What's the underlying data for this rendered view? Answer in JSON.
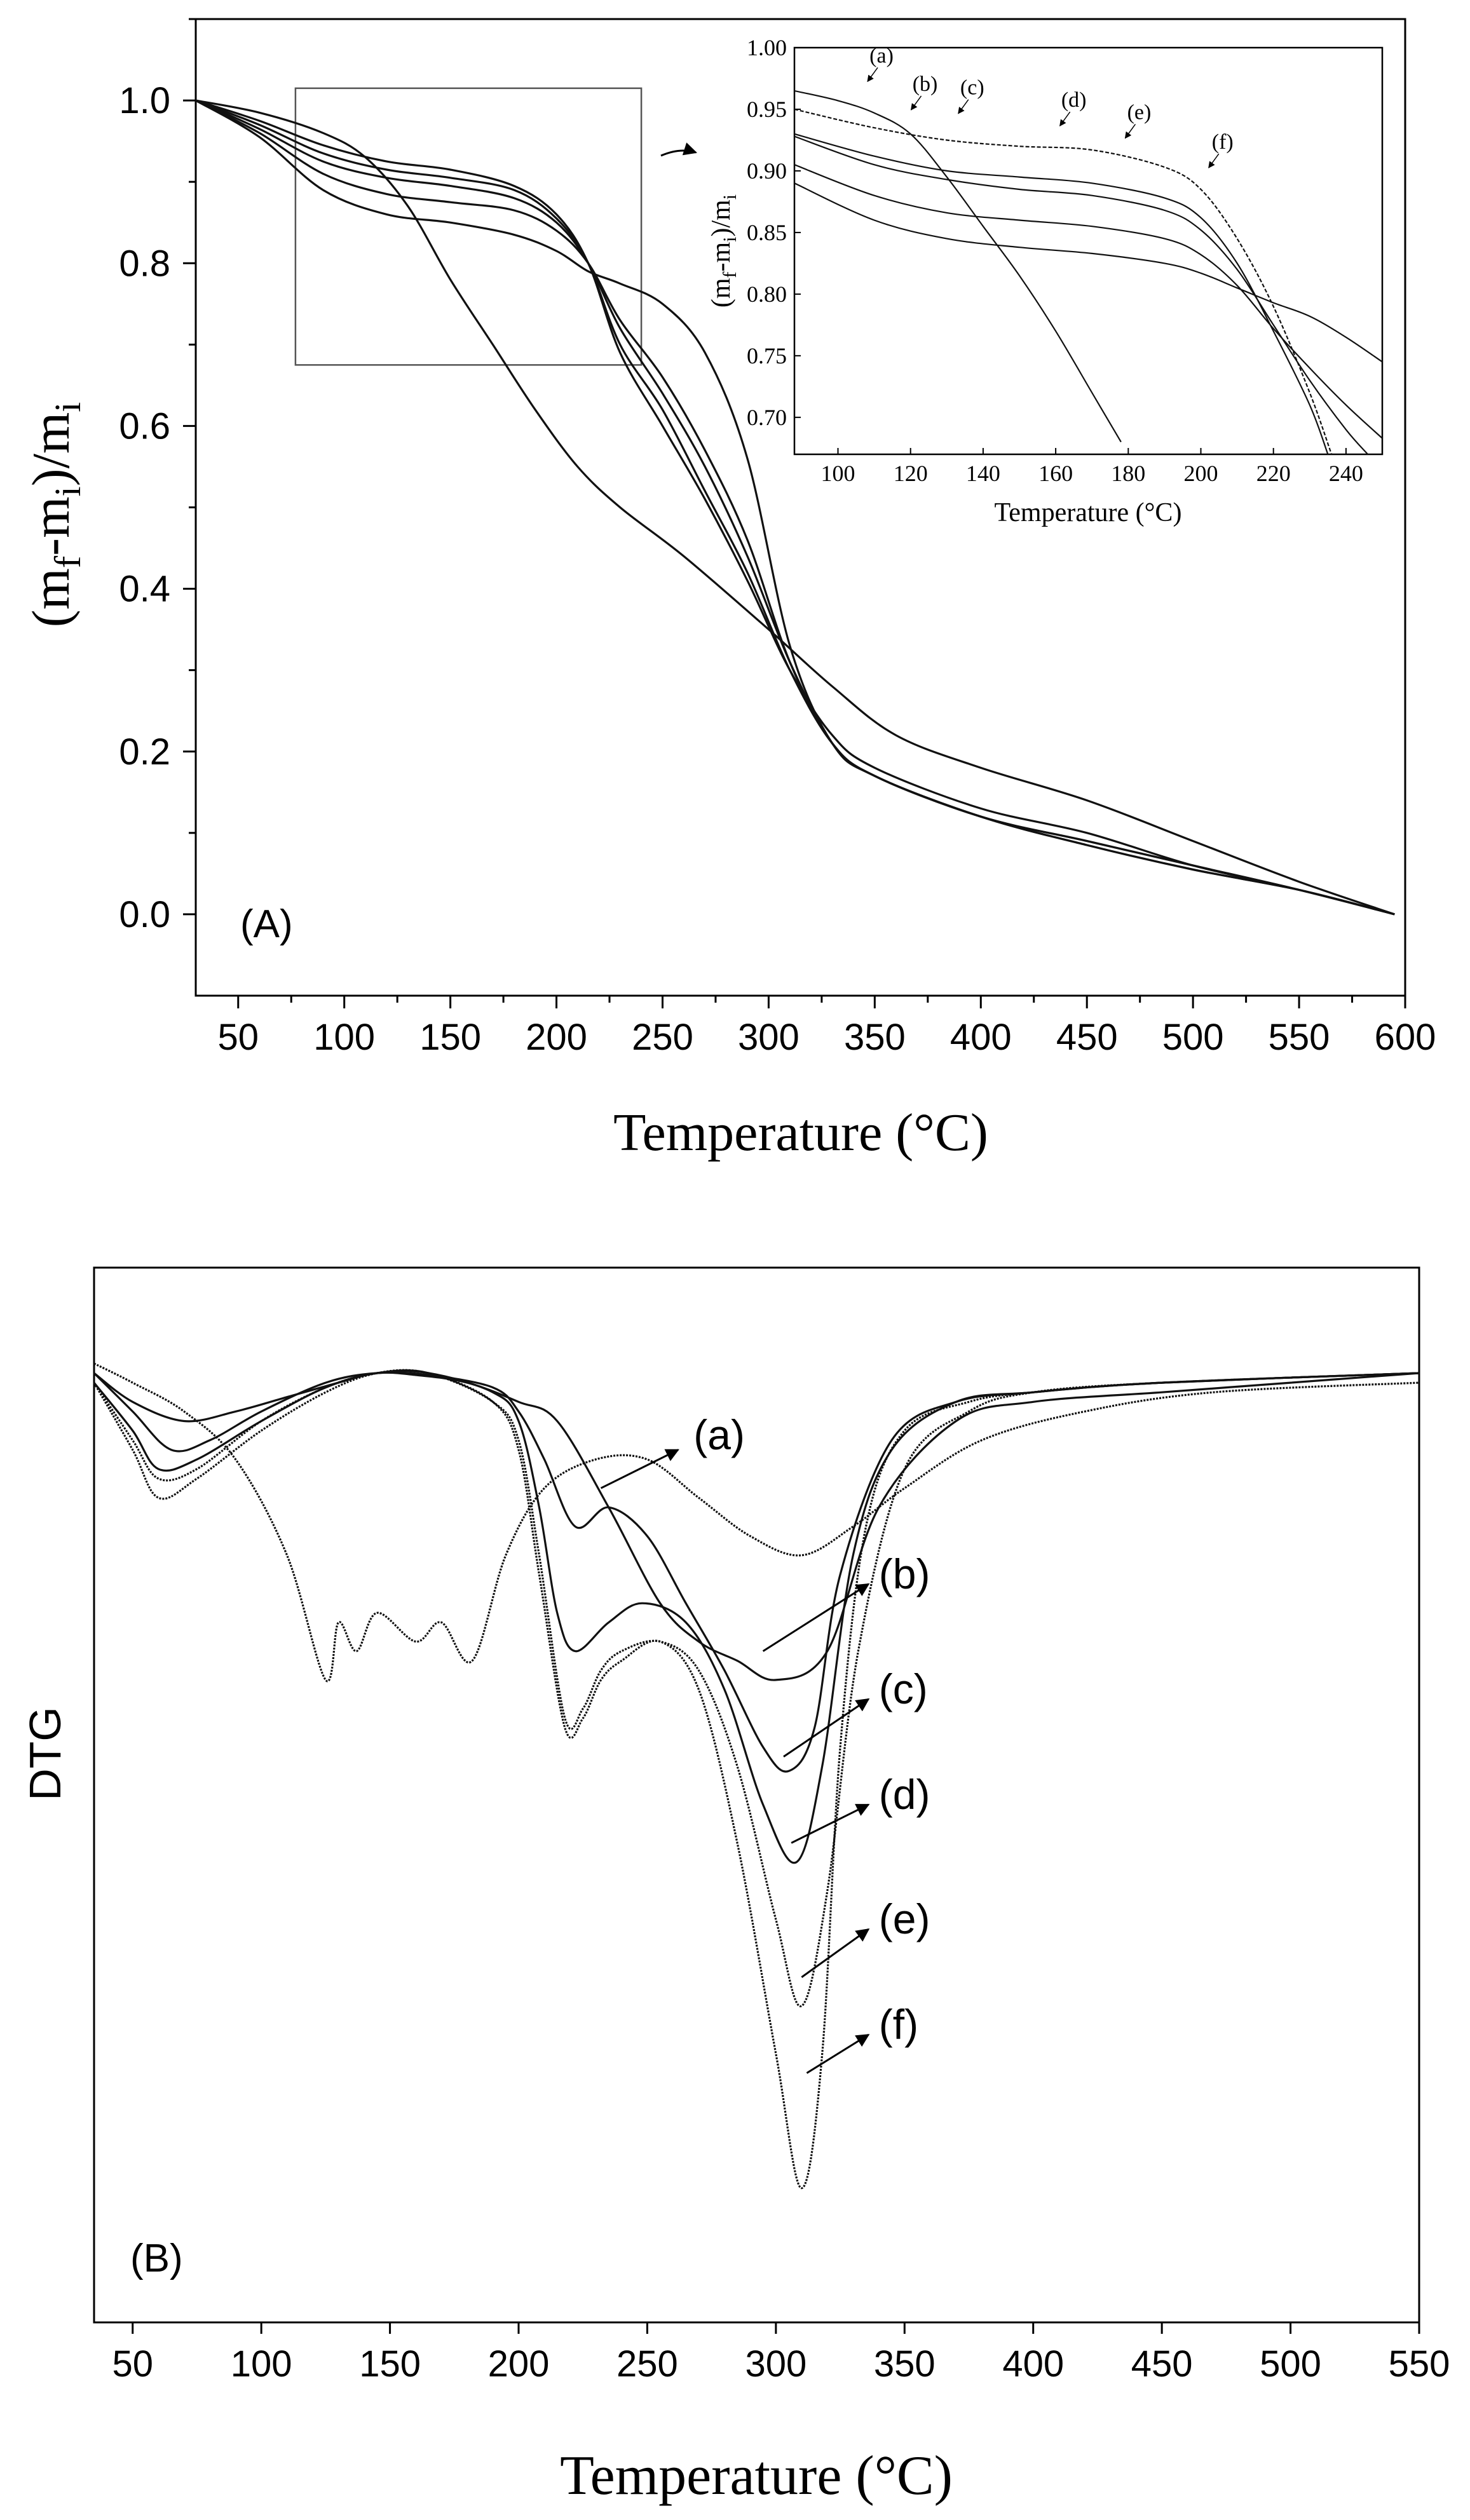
{
  "chart_data": [
    {
      "id": "A",
      "type": "line",
      "panel_label": "(A)",
      "xlabel": "Temperature (°C)",
      "ylabel_parts": {
        "open": "(m",
        "sub1": "f",
        "mid": "-m",
        "sub2": "i",
        "close": ")/m",
        "sub3": "i"
      },
      "xlim": [
        30,
        600
      ],
      "ylim": [
        -0.1,
        1.1
      ],
      "xticks": [
        "50",
        "100",
        "150",
        "200",
        "250",
        "300",
        "350",
        "400",
        "450",
        "500",
        "550",
        "600"
      ],
      "xtick_values": [
        50,
        100,
        150,
        200,
        250,
        300,
        350,
        400,
        450,
        500,
        550,
        600
      ],
      "yticks": [
        "0.0",
        "0.2",
        "0.4",
        "0.6",
        "0.8",
        "1.0"
      ],
      "ytick_values": [
        0,
        0.2,
        0.4,
        0.6,
        0.8,
        1.0
      ],
      "zoom_box": {
        "x": [
          77,
          240
        ],
        "y": [
          0.675,
          1.015
        ]
      },
      "series": [
        {
          "name": "(a)",
          "x": [
            30,
            60,
            90,
            110,
            130,
            150,
            170,
            190,
            210,
            230,
            260,
            300,
            330,
            360,
            400,
            450,
            500,
            550,
            595
          ],
          "y": [
            1.0,
            0.985,
            0.96,
            0.93,
            0.87,
            0.78,
            0.7,
            0.62,
            0.55,
            0.5,
            0.44,
            0.35,
            0.28,
            0.22,
            0.18,
            0.14,
            0.09,
            0.04,
            0.0
          ]
        },
        {
          "name": "(b)",
          "x": [
            30,
            60,
            90,
            120,
            150,
            180,
            200,
            215,
            230,
            250,
            270,
            290,
            310,
            330,
            350,
            400,
            450,
            500,
            550,
            595
          ],
          "y": [
            1.0,
            0.975,
            0.945,
            0.925,
            0.915,
            0.895,
            0.86,
            0.8,
            0.69,
            0.6,
            0.51,
            0.41,
            0.3,
            0.22,
            0.18,
            0.13,
            0.1,
            0.06,
            0.03,
            0.0
          ]
        },
        {
          "name": "(c)",
          "x": [
            30,
            60,
            90,
            120,
            150,
            180,
            200,
            215,
            230,
            250,
            270,
            290,
            310,
            330,
            350,
            400,
            450,
            500,
            550,
            595
          ],
          "y": [
            1.0,
            0.97,
            0.935,
            0.915,
            0.905,
            0.89,
            0.855,
            0.8,
            0.7,
            0.62,
            0.52,
            0.42,
            0.3,
            0.21,
            0.17,
            0.12,
            0.09,
            0.06,
            0.03,
            0.0
          ]
        },
        {
          "name": "(d)",
          "x": [
            30,
            60,
            90,
            120,
            150,
            180,
            200,
            215,
            230,
            250,
            270,
            290,
            310,
            330,
            350,
            400,
            450,
            500,
            550,
            595
          ],
          "y": [
            1.0,
            0.965,
            0.925,
            0.905,
            0.895,
            0.88,
            0.85,
            0.8,
            0.72,
            0.64,
            0.55,
            0.44,
            0.31,
            0.21,
            0.17,
            0.12,
            0.09,
            0.06,
            0.03,
            0.0
          ]
        },
        {
          "name": "(e)",
          "x": [
            30,
            60,
            90,
            120,
            150,
            180,
            200,
            215,
            230,
            250,
            270,
            290,
            310,
            330,
            350,
            400,
            450,
            500,
            550,
            595
          ],
          "y": [
            1.0,
            0.96,
            0.91,
            0.885,
            0.875,
            0.865,
            0.84,
            0.8,
            0.73,
            0.66,
            0.57,
            0.46,
            0.31,
            0.21,
            0.17,
            0.12,
            0.085,
            0.055,
            0.03,
            0.0
          ]
        },
        {
          "name": "(f)",
          "x": [
            30,
            60,
            90,
            120,
            150,
            180,
            200,
            215,
            230,
            250,
            270,
            290,
            310,
            330,
            350,
            400,
            450,
            500,
            550,
            595
          ],
          "y": [
            1.0,
            0.955,
            0.89,
            0.86,
            0.85,
            0.835,
            0.815,
            0.79,
            0.775,
            0.75,
            0.69,
            0.56,
            0.33,
            0.21,
            0.17,
            0.12,
            0.085,
            0.055,
            0.03,
            0.0
          ]
        }
      ],
      "inset": {
        "xlabel": "Temperature (°C)",
        "ylabel_parts": {
          "open": "(m",
          "sub1": "f",
          "mid": "-m",
          "sub2": "i",
          "close": ")/m",
          "sub3": "i"
        },
        "xlim": [
          88,
          250
        ],
        "ylim": [
          0.67,
          1.0
        ],
        "xticks": [
          "100",
          "120",
          "140",
          "160",
          "180",
          "200",
          "220",
          "240"
        ],
        "xtick_values": [
          100,
          120,
          140,
          160,
          180,
          200,
          220,
          240
        ],
        "yticks": [
          "0.70",
          "0.75",
          "0.80",
          "0.85",
          "0.90",
          "0.95",
          "1.00"
        ],
        "ytick_values": [
          0.7,
          0.75,
          0.8,
          0.85,
          0.9,
          0.95,
          1.0
        ],
        "series": [
          {
            "name": "(a)",
            "x": [
              88,
              100,
              110,
              120,
              130,
              140,
              150,
              160,
              170,
              178
            ],
            "y": [
              0.965,
              0.957,
              0.947,
              0.93,
              0.895,
              0.855,
              0.815,
              0.77,
              0.72,
              0.68
            ]
          },
          {
            "name": "(b)",
            "x": [
              88,
              110,
              130,
              150,
              170,
              190,
              200,
              210,
              220,
              230,
              236
            ],
            "y": [
              0.95,
              0.935,
              0.925,
              0.92,
              0.917,
              0.903,
              0.885,
              0.845,
              0.79,
              0.72,
              0.67
            ]
          },
          {
            "name": "(c)",
            "x": [
              88,
              110,
              130,
              150,
              170,
              190,
              200,
              210,
              220,
              230,
              235
            ],
            "y": [
              0.93,
              0.912,
              0.9,
              0.895,
              0.89,
              0.878,
              0.862,
              0.825,
              0.77,
              0.71,
              0.67
            ]
          },
          {
            "name": "(d)",
            "x": [
              88,
              110,
              130,
              150,
              170,
              190,
              200,
              210,
              220,
              230,
              240,
              246
            ],
            "y": [
              0.928,
              0.905,
              0.893,
              0.885,
              0.88,
              0.868,
              0.852,
              0.82,
              0.775,
              0.73,
              0.69,
              0.67
            ]
          },
          {
            "name": "(e)",
            "x": [
              88,
              110,
              130,
              150,
              170,
              190,
              200,
              210,
              220,
              230,
              240,
              250
            ],
            "y": [
              0.905,
              0.88,
              0.866,
              0.86,
              0.855,
              0.845,
              0.832,
              0.807,
              0.772,
              0.74,
              0.71,
              0.683
            ]
          },
          {
            "name": "(f)",
            "x": [
              88,
              110,
              130,
              150,
              170,
              190,
              200,
              210,
              220,
              230,
              240,
              250
            ],
            "y": [
              0.89,
              0.86,
              0.845,
              0.838,
              0.833,
              0.825,
              0.817,
              0.805,
              0.793,
              0.782,
              0.765,
              0.745
            ]
          }
        ],
        "annotations": [
          {
            "text": "(a)",
            "x": 112,
            "y": 0.988
          },
          {
            "text": "(b)",
            "x": 124,
            "y": 0.965
          },
          {
            "text": "(c)",
            "x": 137,
            "y": 0.962
          },
          {
            "text": "(d)",
            "x": 165,
            "y": 0.952
          },
          {
            "text": "(e)",
            "x": 183,
            "y": 0.942
          },
          {
            "text": "(f)",
            "x": 206,
            "y": 0.918
          }
        ]
      }
    },
    {
      "id": "B",
      "type": "line",
      "panel_label": "(B)",
      "xlabel": "Temperature (°C)",
      "ylabel": "DTG",
      "xlim": [
        35,
        550
      ],
      "ylim": [
        -1.0,
        0.1
      ],
      "xticks": [
        "50",
        "100",
        "150",
        "200",
        "250",
        "300",
        "350",
        "400",
        "450",
        "500",
        "550"
      ],
      "xtick_values": [
        50,
        100,
        150,
        200,
        250,
        300,
        350,
        400,
        450,
        500,
        550
      ],
      "yticks": [],
      "series": [
        {
          "name": "(a)",
          "x": [
            35,
            50,
            70,
            90,
            110,
            125,
            130,
            137,
            145,
            160,
            170,
            182,
            195,
            210,
            230,
            250,
            270,
            290,
            310,
            330,
            350,
            380,
            420,
            470,
            550
          ],
          "y": [
            0.0,
            -0.02,
            -0.05,
            -0.1,
            -0.2,
            -0.33,
            -0.27,
            -0.3,
            -0.26,
            -0.29,
            -0.27,
            -0.31,
            -0.2,
            -0.13,
            -0.1,
            -0.1,
            -0.14,
            -0.18,
            -0.2,
            -0.17,
            -0.13,
            -0.08,
            -0.05,
            -0.03,
            -0.02
          ]
        },
        {
          "name": "(b)",
          "x": [
            35,
            50,
            70,
            90,
            110,
            130,
            145,
            160,
            180,
            200,
            215,
            235,
            255,
            270,
            285,
            300,
            320,
            340,
            370,
            400,
            450,
            500,
            550
          ],
          "y": [
            -0.01,
            -0.04,
            -0.06,
            -0.05,
            -0.035,
            -0.02,
            -0.01,
            -0.012,
            -0.02,
            -0.04,
            -0.06,
            -0.15,
            -0.25,
            -0.29,
            -0.31,
            -0.33,
            -0.3,
            -0.15,
            -0.06,
            -0.04,
            -0.03,
            -0.02,
            -0.01
          ]
        },
        {
          "name": "(c)",
          "x": [
            35,
            50,
            65,
            80,
            100,
            125,
            145,
            165,
            190,
            200,
            210,
            222,
            235,
            250,
            265,
            280,
            295,
            305,
            315,
            325,
            345,
            370,
            400,
            450,
            550
          ],
          "y": [
            -0.01,
            -0.05,
            -0.09,
            -0.08,
            -0.05,
            -0.02,
            -0.01,
            -0.012,
            -0.025,
            -0.05,
            -0.1,
            -0.17,
            -0.15,
            -0.18,
            -0.25,
            -0.32,
            -0.4,
            -0.425,
            -0.38,
            -0.22,
            -0.08,
            -0.04,
            -0.03,
            -0.02,
            -0.01
          ]
        },
        {
          "name": "(d)",
          "x": [
            35,
            50,
            60,
            75,
            100,
            125,
            145,
            165,
            190,
            200,
            208,
            215,
            222,
            235,
            248,
            265,
            280,
            295,
            308,
            318,
            330,
            345,
            370,
            400,
            450,
            550
          ],
          "y": [
            -0.02,
            -0.07,
            -0.11,
            -0.1,
            -0.06,
            -0.025,
            -0.01,
            -0.01,
            -0.03,
            -0.06,
            -0.15,
            -0.26,
            -0.3,
            -0.27,
            -0.25,
            -0.27,
            -0.34,
            -0.46,
            -0.52,
            -0.42,
            -0.2,
            -0.09,
            -0.04,
            -0.03,
            -0.02,
            -0.01
          ]
        },
        {
          "name": "(e)",
          "x": [
            35,
            50,
            60,
            75,
            100,
            125,
            145,
            165,
            190,
            200,
            208,
            218,
            225,
            232,
            240,
            255,
            270,
            285,
            300,
            310,
            320,
            332,
            350,
            375,
            400,
            450,
            550
          ],
          "y": [
            -0.02,
            -0.08,
            -0.12,
            -0.11,
            -0.06,
            -0.025,
            -0.01,
            -0.01,
            -0.04,
            -0.08,
            -0.2,
            -0.37,
            -0.36,
            -0.32,
            -0.3,
            -0.29,
            -0.32,
            -0.42,
            -0.58,
            -0.67,
            -0.55,
            -0.3,
            -0.11,
            -0.05,
            -0.03,
            -0.02,
            -0.01
          ]
        },
        {
          "name": "(f)",
          "x": [
            35,
            50,
            60,
            75,
            100,
            125,
            145,
            165,
            190,
            200,
            208,
            218,
            225,
            232,
            240,
            255,
            270,
            285,
            300,
            310,
            318,
            325,
            335,
            350,
            375,
            400,
            450,
            550
          ],
          "y": [
            -0.02,
            -0.09,
            -0.14,
            -0.12,
            -0.07,
            -0.03,
            -0.01,
            -0.01,
            -0.04,
            -0.09,
            -0.22,
            -0.38,
            -0.37,
            -0.33,
            -0.31,
            -0.29,
            -0.34,
            -0.5,
            -0.72,
            -0.86,
            -0.72,
            -0.4,
            -0.17,
            -0.07,
            -0.04,
            -0.03,
            -0.02,
            -0.01
          ]
        }
      ],
      "annotations": [
        {
          "text": "(a)",
          "x": 268,
          "y": -0.075,
          "arrow_from": [
            232,
            -0.13
          ],
          "arrow_to": [
            262,
            -0.09
          ]
        },
        {
          "text": "(b)",
          "x": 340,
          "y": -0.22,
          "arrow_from": [
            295,
            -0.3
          ],
          "arrow_to": [
            336,
            -0.23
          ]
        },
        {
          "text": "(c)",
          "x": 340,
          "y": -0.34,
          "arrow_from": [
            303,
            -0.41
          ],
          "arrow_to": [
            336,
            -0.35
          ]
        },
        {
          "text": "(d)",
          "x": 340,
          "y": -0.45,
          "arrow_from": [
            306,
            -0.5
          ],
          "arrow_to": [
            336,
            -0.46
          ]
        },
        {
          "text": "(e)",
          "x": 340,
          "y": -0.58,
          "arrow_from": [
            310,
            -0.64
          ],
          "arrow_to": [
            336,
            -0.59
          ]
        },
        {
          "text": "(f)",
          "x": 340,
          "y": -0.69,
          "arrow_from": [
            312,
            -0.74
          ],
          "arrow_to": [
            336,
            -0.7
          ]
        }
      ]
    }
  ]
}
